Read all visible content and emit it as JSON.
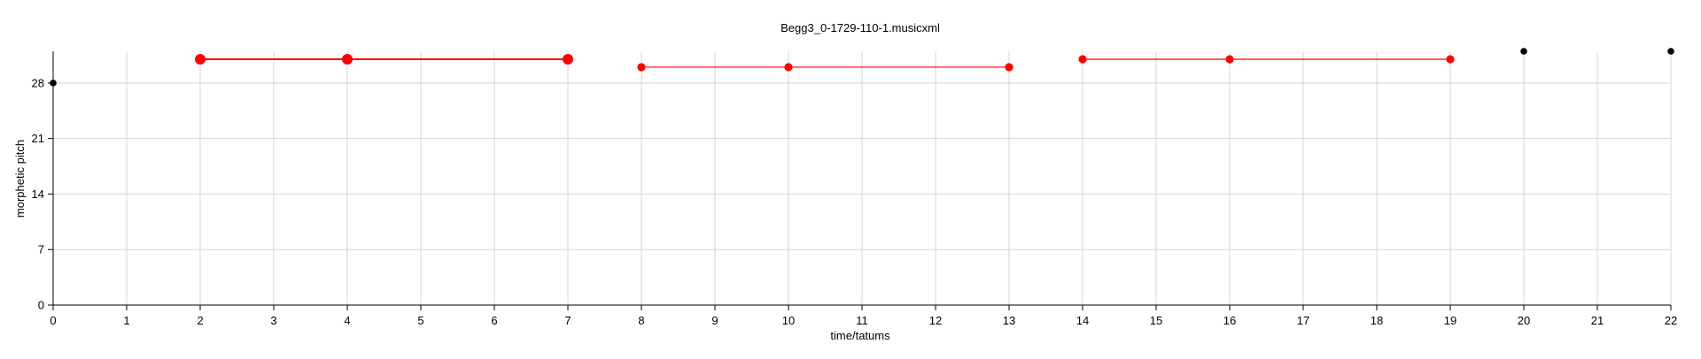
{
  "chart_data": {
    "type": "scatter",
    "title": "Begg3_0-1729-110-1.musicxml",
    "xlabel": "time/tatums",
    "ylabel": "morphetic pitch",
    "xlim": [
      0,
      22
    ],
    "ylim": [
      0,
      32
    ],
    "xticks": [
      0,
      1,
      2,
      3,
      4,
      5,
      6,
      7,
      8,
      9,
      10,
      11,
      12,
      13,
      14,
      15,
      16,
      17,
      18,
      19,
      20,
      21,
      22
    ],
    "yticks": [
      0,
      7,
      14,
      21,
      28
    ],
    "grid": true,
    "points": [
      {
        "x": 0,
        "y": 28,
        "color": "#000000",
        "size": "small"
      },
      {
        "x": 20,
        "y": 32,
        "color": "#000000",
        "size": "small"
      },
      {
        "x": 22,
        "y": 32,
        "color": "#000000",
        "size": "small"
      }
    ],
    "patterns": [
      {
        "color": "#ff0000",
        "size": "large",
        "points": [
          {
            "x": 2,
            "y": 31
          },
          {
            "x": 4,
            "y": 31
          },
          {
            "x": 7,
            "y": 31
          }
        ]
      },
      {
        "color": "#ff0000",
        "size": "medium",
        "points": [
          {
            "x": 8,
            "y": 30
          },
          {
            "x": 10,
            "y": 30
          },
          {
            "x": 13,
            "y": 30
          }
        ]
      },
      {
        "color": "#ff0000",
        "size": "medium",
        "points": [
          {
            "x": 14,
            "y": 31
          },
          {
            "x": 16,
            "y": 31
          },
          {
            "x": 19,
            "y": 31
          }
        ]
      }
    ]
  }
}
